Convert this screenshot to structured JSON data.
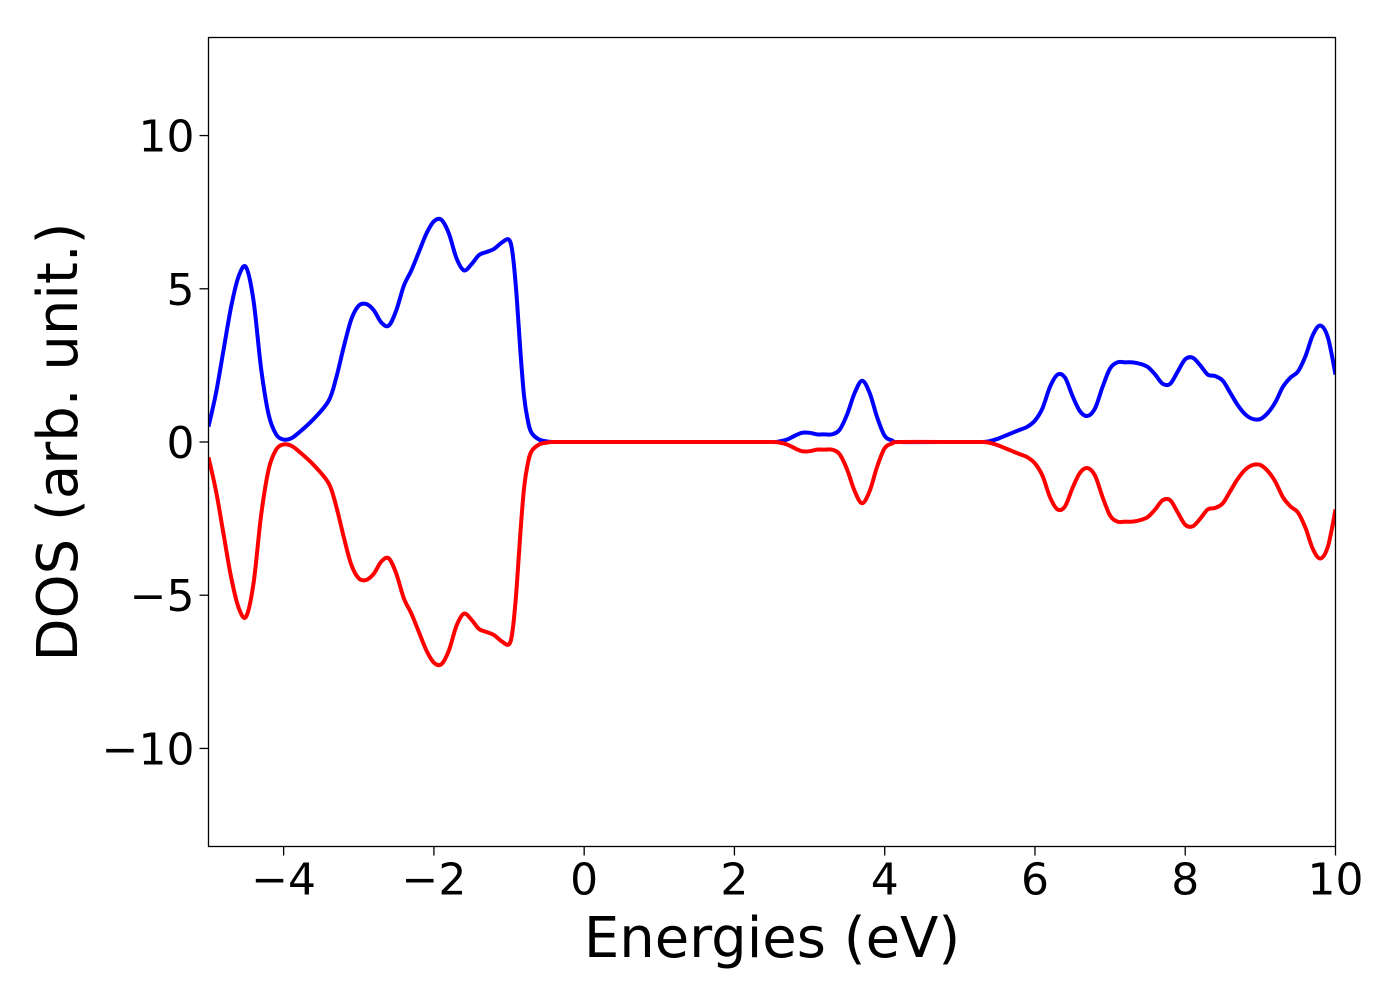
{
  "chart_data": {
    "type": "line",
    "title": "",
    "xlabel": "Energies (eV)",
    "ylabel": "DOS (arb. unit.)",
    "xlim": [
      -5,
      10
    ],
    "ylim": [
      -13.2,
      13.2
    ],
    "grid": false,
    "legend": "none",
    "x_ticks": [
      -4,
      -2,
      0,
      2,
      4,
      6,
      8,
      10
    ],
    "x_tick_labels": [
      "−4",
      "−2",
      "0",
      "2",
      "4",
      "6",
      "8",
      "10"
    ],
    "y_ticks": [
      -10,
      -5,
      0,
      5,
      10
    ],
    "y_tick_labels": [
      "−10",
      "−5",
      "0",
      "5",
      "10"
    ],
    "series": [
      {
        "color": "#0000ff",
        "points": [
          [
            -5.0,
            0.5
          ],
          [
            -4.9,
            1.6
          ],
          [
            -4.8,
            3.0
          ],
          [
            -4.7,
            4.4
          ],
          [
            -4.6,
            5.4
          ],
          [
            -4.5,
            5.7
          ],
          [
            -4.4,
            4.6
          ],
          [
            -4.3,
            2.4
          ],
          [
            -4.2,
            0.9
          ],
          [
            -4.1,
            0.25
          ],
          [
            -4.0,
            0.08
          ],
          [
            -3.9,
            0.12
          ],
          [
            -3.8,
            0.3
          ],
          [
            -3.6,
            0.75
          ],
          [
            -3.4,
            1.35
          ],
          [
            -3.3,
            2.1
          ],
          [
            -3.2,
            3.1
          ],
          [
            -3.1,
            4.0
          ],
          [
            -3.0,
            4.45
          ],
          [
            -2.9,
            4.5
          ],
          [
            -2.8,
            4.3
          ],
          [
            -2.7,
            3.9
          ],
          [
            -2.6,
            3.8
          ],
          [
            -2.5,
            4.3
          ],
          [
            -2.4,
            5.1
          ],
          [
            -2.3,
            5.6
          ],
          [
            -2.2,
            6.2
          ],
          [
            -2.1,
            6.8
          ],
          [
            -2.0,
            7.2
          ],
          [
            -1.9,
            7.25
          ],
          [
            -1.8,
            6.8
          ],
          [
            -1.7,
            6.0
          ],
          [
            -1.6,
            5.6
          ],
          [
            -1.5,
            5.8
          ],
          [
            -1.4,
            6.1
          ],
          [
            -1.3,
            6.2
          ],
          [
            -1.2,
            6.3
          ],
          [
            -1.1,
            6.5
          ],
          [
            -1.0,
            6.6
          ],
          [
            -0.95,
            6.1
          ],
          [
            -0.9,
            4.8
          ],
          [
            -0.85,
            3.0
          ],
          [
            -0.8,
            1.5
          ],
          [
            -0.75,
            0.7
          ],
          [
            -0.7,
            0.3
          ],
          [
            -0.6,
            0.08
          ],
          [
            -0.5,
            0.02
          ],
          [
            -0.4,
            0.0
          ],
          [
            0.0,
            0.0
          ],
          [
            1.0,
            0.0
          ],
          [
            2.0,
            0.0
          ],
          [
            2.5,
            0.0
          ],
          [
            2.6,
            0.02
          ],
          [
            2.7,
            0.08
          ],
          [
            2.8,
            0.2
          ],
          [
            2.9,
            0.3
          ],
          [
            3.0,
            0.3
          ],
          [
            3.1,
            0.25
          ],
          [
            3.2,
            0.25
          ],
          [
            3.3,
            0.25
          ],
          [
            3.4,
            0.4
          ],
          [
            3.5,
            0.9
          ],
          [
            3.6,
            1.6
          ],
          [
            3.7,
            2.0
          ],
          [
            3.8,
            1.6
          ],
          [
            3.9,
            0.8
          ],
          [
            4.0,
            0.2
          ],
          [
            4.1,
            0.05
          ],
          [
            4.2,
            0.0
          ],
          [
            5.0,
            0.0
          ],
          [
            5.3,
            0.0
          ],
          [
            5.4,
            0.03
          ],
          [
            5.5,
            0.1
          ],
          [
            5.6,
            0.2
          ],
          [
            5.7,
            0.3
          ],
          [
            5.8,
            0.4
          ],
          [
            5.9,
            0.5
          ],
          [
            6.0,
            0.7
          ],
          [
            6.1,
            1.1
          ],
          [
            6.2,
            1.8
          ],
          [
            6.3,
            2.2
          ],
          [
            6.4,
            2.1
          ],
          [
            6.5,
            1.5
          ],
          [
            6.6,
            1.0
          ],
          [
            6.7,
            0.85
          ],
          [
            6.8,
            1.1
          ],
          [
            6.9,
            1.8
          ],
          [
            7.0,
            2.4
          ],
          [
            7.1,
            2.6
          ],
          [
            7.2,
            2.6
          ],
          [
            7.3,
            2.6
          ],
          [
            7.4,
            2.55
          ],
          [
            7.5,
            2.45
          ],
          [
            7.6,
            2.2
          ],
          [
            7.7,
            1.9
          ],
          [
            7.8,
            1.9
          ],
          [
            7.9,
            2.3
          ],
          [
            8.0,
            2.7
          ],
          [
            8.1,
            2.75
          ],
          [
            8.2,
            2.5
          ],
          [
            8.3,
            2.2
          ],
          [
            8.4,
            2.15
          ],
          [
            8.5,
            2.0
          ],
          [
            8.6,
            1.6
          ],
          [
            8.7,
            1.2
          ],
          [
            8.8,
            0.9
          ],
          [
            8.9,
            0.75
          ],
          [
            9.0,
            0.75
          ],
          [
            9.1,
            0.95
          ],
          [
            9.2,
            1.3
          ],
          [
            9.3,
            1.8
          ],
          [
            9.4,
            2.1
          ],
          [
            9.5,
            2.3
          ],
          [
            9.6,
            2.8
          ],
          [
            9.7,
            3.5
          ],
          [
            9.8,
            3.8
          ],
          [
            9.9,
            3.4
          ],
          [
            10.0,
            2.2
          ]
        ]
      },
      {
        "color": "#ff0000",
        "points": [
          [
            -5.0,
            -0.5
          ],
          [
            -4.9,
            -1.6
          ],
          [
            -4.8,
            -3.0
          ],
          [
            -4.7,
            -4.4
          ],
          [
            -4.6,
            -5.4
          ],
          [
            -4.5,
            -5.7
          ],
          [
            -4.4,
            -4.6
          ],
          [
            -4.3,
            -2.4
          ],
          [
            -4.2,
            -0.9
          ],
          [
            -4.1,
            -0.25
          ],
          [
            -4.0,
            -0.08
          ],
          [
            -3.9,
            -0.12
          ],
          [
            -3.8,
            -0.3
          ],
          [
            -3.6,
            -0.75
          ],
          [
            -3.4,
            -1.35
          ],
          [
            -3.3,
            -2.1
          ],
          [
            -3.2,
            -3.1
          ],
          [
            -3.1,
            -4.0
          ],
          [
            -3.0,
            -4.45
          ],
          [
            -2.9,
            -4.5
          ],
          [
            -2.8,
            -4.3
          ],
          [
            -2.7,
            -3.9
          ],
          [
            -2.6,
            -3.8
          ],
          [
            -2.5,
            -4.3
          ],
          [
            -2.4,
            -5.1
          ],
          [
            -2.3,
            -5.6
          ],
          [
            -2.2,
            -6.2
          ],
          [
            -2.1,
            -6.8
          ],
          [
            -2.0,
            -7.2
          ],
          [
            -1.9,
            -7.25
          ],
          [
            -1.8,
            -6.8
          ],
          [
            -1.7,
            -6.0
          ],
          [
            -1.6,
            -5.6
          ],
          [
            -1.5,
            -5.8
          ],
          [
            -1.4,
            -6.1
          ],
          [
            -1.3,
            -6.2
          ],
          [
            -1.2,
            -6.3
          ],
          [
            -1.1,
            -6.5
          ],
          [
            -1.0,
            -6.6
          ],
          [
            -0.95,
            -6.1
          ],
          [
            -0.9,
            -4.8
          ],
          [
            -0.85,
            -3.0
          ],
          [
            -0.8,
            -1.5
          ],
          [
            -0.75,
            -0.7
          ],
          [
            -0.7,
            -0.3
          ],
          [
            -0.6,
            -0.08
          ],
          [
            -0.5,
            -0.02
          ],
          [
            -0.4,
            0.0
          ],
          [
            0.0,
            0.0
          ],
          [
            1.0,
            0.0
          ],
          [
            2.0,
            0.0
          ],
          [
            2.5,
            0.0
          ],
          [
            2.6,
            -0.02
          ],
          [
            2.7,
            -0.08
          ],
          [
            2.8,
            -0.2
          ],
          [
            2.9,
            -0.3
          ],
          [
            3.0,
            -0.3
          ],
          [
            3.1,
            -0.25
          ],
          [
            3.2,
            -0.25
          ],
          [
            3.3,
            -0.25
          ],
          [
            3.4,
            -0.4
          ],
          [
            3.5,
            -0.9
          ],
          [
            3.6,
            -1.6
          ],
          [
            3.7,
            -2.0
          ],
          [
            3.8,
            -1.6
          ],
          [
            3.9,
            -0.8
          ],
          [
            4.0,
            -0.2
          ],
          [
            4.1,
            -0.05
          ],
          [
            4.2,
            0.0
          ],
          [
            5.0,
            0.0
          ],
          [
            5.3,
            0.0
          ],
          [
            5.4,
            -0.03
          ],
          [
            5.5,
            -0.1
          ],
          [
            5.6,
            -0.2
          ],
          [
            5.7,
            -0.3
          ],
          [
            5.8,
            -0.4
          ],
          [
            5.9,
            -0.5
          ],
          [
            6.0,
            -0.7
          ],
          [
            6.1,
            -1.1
          ],
          [
            6.2,
            -1.8
          ],
          [
            6.3,
            -2.2
          ],
          [
            6.4,
            -2.1
          ],
          [
            6.5,
            -1.5
          ],
          [
            6.6,
            -1.0
          ],
          [
            6.7,
            -0.85
          ],
          [
            6.8,
            -1.1
          ],
          [
            6.9,
            -1.8
          ],
          [
            7.0,
            -2.4
          ],
          [
            7.1,
            -2.6
          ],
          [
            7.2,
            -2.6
          ],
          [
            7.3,
            -2.6
          ],
          [
            7.4,
            -2.55
          ],
          [
            7.5,
            -2.45
          ],
          [
            7.6,
            -2.2
          ],
          [
            7.7,
            -1.9
          ],
          [
            7.8,
            -1.9
          ],
          [
            7.9,
            -2.3
          ],
          [
            8.0,
            -2.7
          ],
          [
            8.1,
            -2.75
          ],
          [
            8.2,
            -2.5
          ],
          [
            8.3,
            -2.2
          ],
          [
            8.4,
            -2.15
          ],
          [
            8.5,
            -2.0
          ],
          [
            8.6,
            -1.6
          ],
          [
            8.7,
            -1.2
          ],
          [
            8.8,
            -0.9
          ],
          [
            8.9,
            -0.75
          ],
          [
            9.0,
            -0.75
          ],
          [
            9.1,
            -0.95
          ],
          [
            9.2,
            -1.3
          ],
          [
            9.3,
            -1.8
          ],
          [
            9.4,
            -2.1
          ],
          [
            9.5,
            -2.3
          ],
          [
            9.6,
            -2.8
          ],
          [
            9.7,
            -3.5
          ],
          [
            9.8,
            -3.8
          ],
          [
            9.9,
            -3.4
          ],
          [
            10.0,
            -2.2
          ]
        ]
      }
    ]
  }
}
